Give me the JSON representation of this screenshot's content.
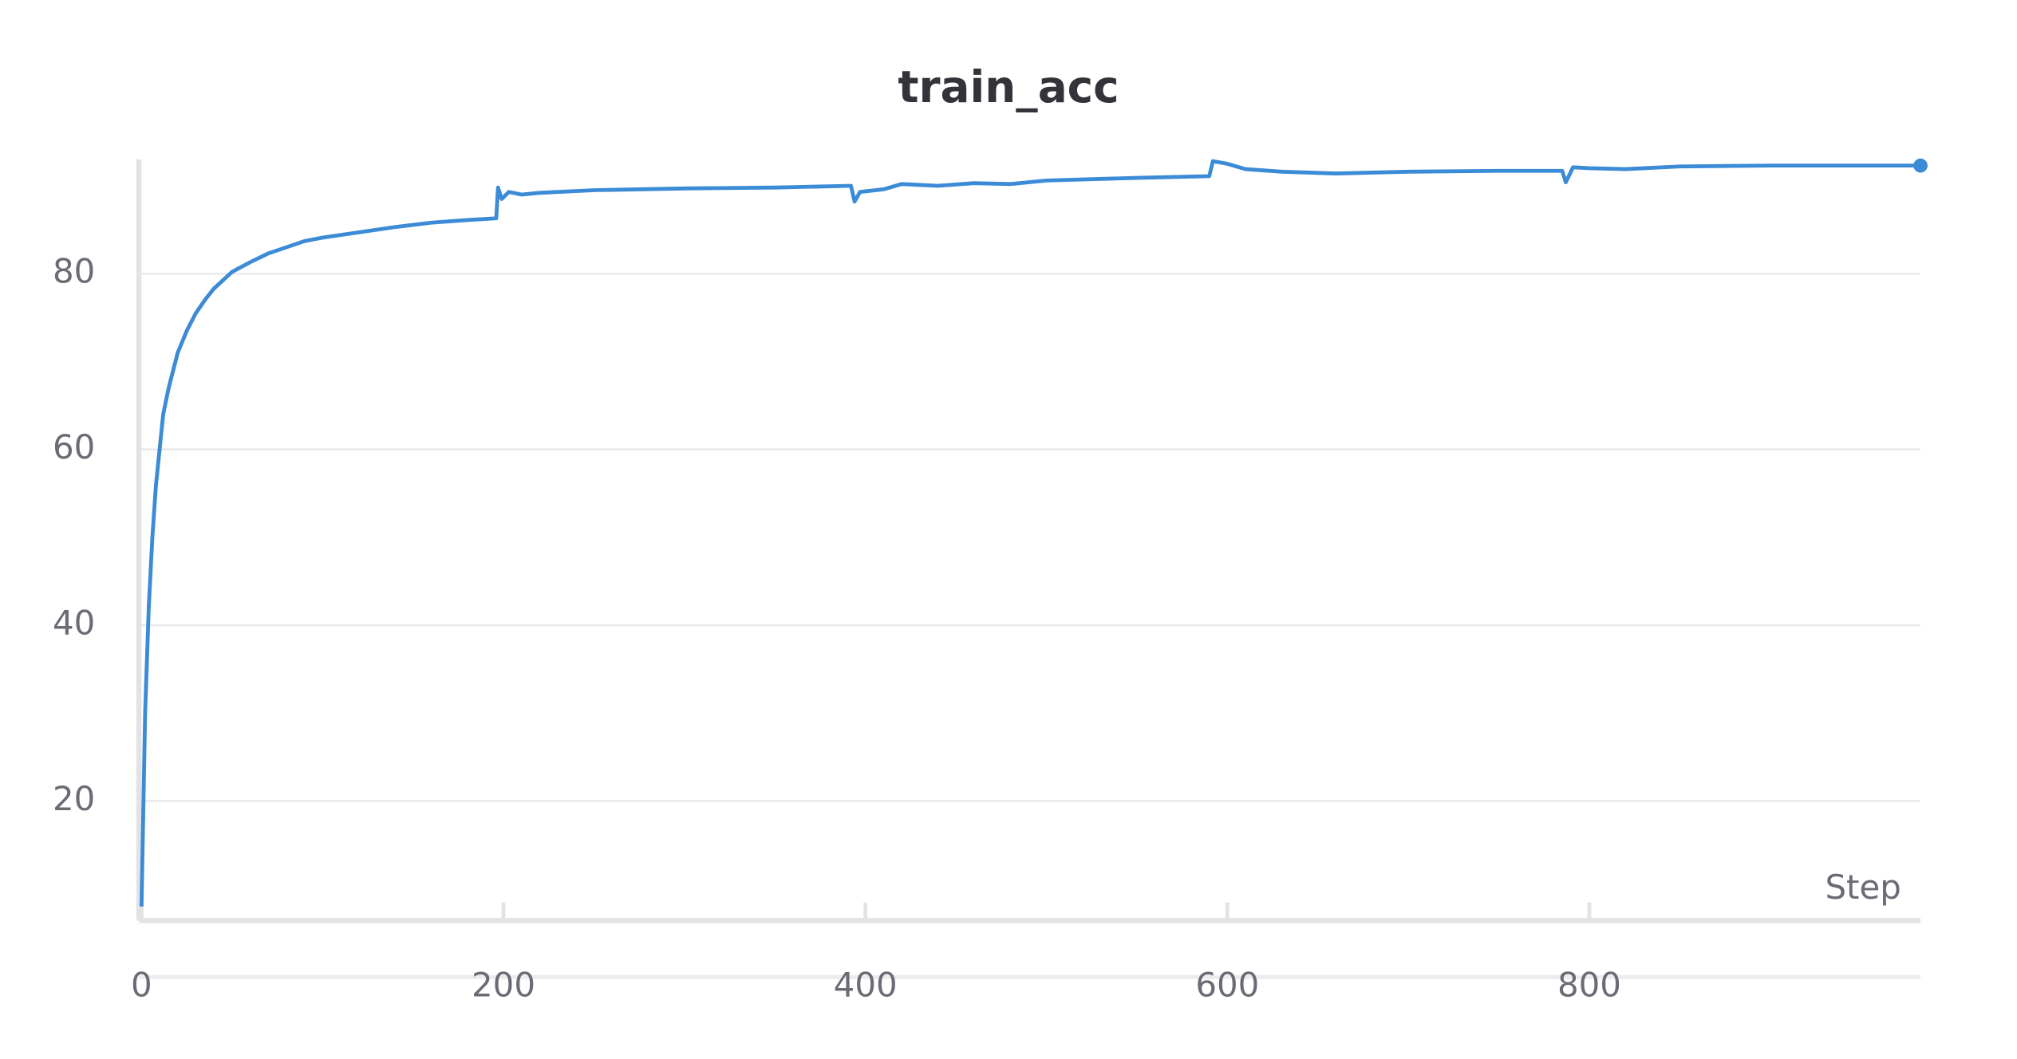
{
  "chart_data": {
    "type": "line",
    "title": "train_acc",
    "x_label": "Step",
    "color": "#3b8bd6",
    "x": [
      0,
      2,
      4,
      6,
      8,
      10,
      12,
      15,
      20,
      25,
      30,
      35,
      40,
      50,
      60,
      70,
      80,
      90,
      100,
      120,
      140,
      160,
      180,
      196,
      197,
      199,
      203,
      210,
      220,
      250,
      300,
      350,
      392,
      394,
      397,
      410,
      420,
      440,
      460,
      480,
      500,
      550,
      590,
      592,
      600,
      610,
      630,
      660,
      700,
      750,
      785,
      787,
      791,
      800,
      820,
      850,
      900,
      983
    ],
    "values": [
      8,
      30,
      42,
      50,
      56,
      60,
      64,
      67,
      71,
      73.5,
      75.5,
      77,
      78.3,
      80.2,
      81.3,
      82.3,
      83,
      83.7,
      84.1,
      84.7,
      85.3,
      85.8,
      86.1,
      86.3,
      89.8,
      88.5,
      89.3,
      89,
      89.2,
      89.5,
      89.7,
      89.8,
      90,
      88.2,
      89.3,
      89.6,
      90.2,
      90,
      90.3,
      90.2,
      90.6,
      90.9,
      91.1,
      92.8,
      92.5,
      91.9,
      91.6,
      91.4,
      91.6,
      91.7,
      91.7,
      90.4,
      92.1,
      92,
      91.9,
      92.2,
      92.3,
      92.3
    ],
    "xlim": [
      0,
      983
    ],
    "ylim": [
      6.4,
      93
    ],
    "xticks": [
      0,
      200,
      400,
      600,
      800
    ],
    "yticks": [
      20,
      40,
      60,
      80
    ],
    "grid": true
  }
}
